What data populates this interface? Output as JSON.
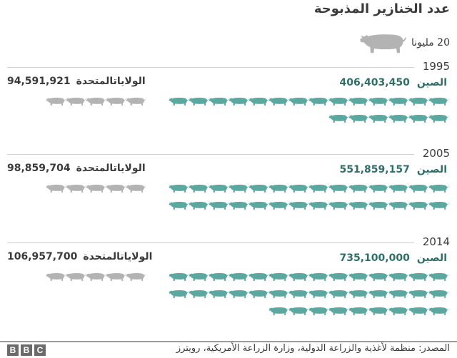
{
  "title": "عدد الخنازير المذبوحة",
  "legend": {
    "label": "20 مليونا",
    "icon": "pig-icon",
    "unit_value": 20000000
  },
  "colors": {
    "china": "#5aa8a0",
    "china_text": "#2e6e68",
    "us": "#b3b3b3",
    "text": "#3a3a3a",
    "rule": "#d0d0d0"
  },
  "years": [
    {
      "year": "1995",
      "china": {
        "name": "الصين",
        "value": "406,403,450",
        "pigs": 20
      },
      "us": {
        "name": "الولاياتالمتحدة",
        "value": "94,591,921",
        "pigs": 5
      }
    },
    {
      "year": "2005",
      "china": {
        "name": "الصين",
        "value": "551,859,157",
        "pigs": 28
      },
      "us": {
        "name": "الولاياتالمتحدة",
        "value": "98,859,704",
        "pigs": 5
      }
    },
    {
      "year": "2014",
      "china": {
        "name": "الصين",
        "value": "735,100,000",
        "pigs": 37
      },
      "us": {
        "name": "الولاياتالمتحدة",
        "value": "106,957,700",
        "pigs": 5
      }
    }
  ],
  "footer": {
    "source": "المصدر: منظمة لأغذية والزراعة الدولية، وزارة الزراعة الأمريكية، رويترز",
    "logo": [
      "B",
      "B",
      "C"
    ]
  },
  "chart_data": {
    "type": "bar",
    "title": "عدد الخنازير المذبوحة",
    "subtitle": "Pictogram: 1 pig = 20 مليونا (20 million)",
    "categories": [
      "1995",
      "2005",
      "2014"
    ],
    "series": [
      {
        "name": "الصين",
        "values": [
          406403450,
          551859157,
          735100000
        ]
      },
      {
        "name": "الولايات المتحدة",
        "values": [
          94591921,
          98859704,
          106957700
        ]
      }
    ],
    "xlabel": "",
    "ylabel": "",
    "legend_position": "top-right",
    "grid": false
  }
}
